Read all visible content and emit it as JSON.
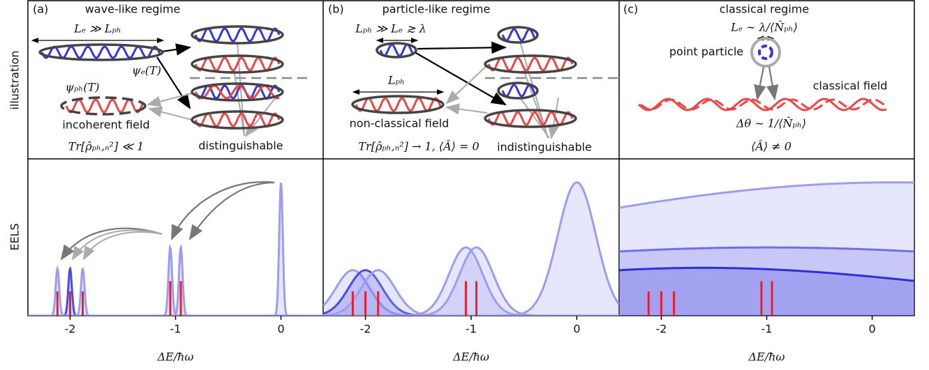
{
  "row_labels": [
    "illustration",
    "EELS"
  ],
  "illustrations": [
    {
      "label": "(a)",
      "title": "wave-like regime",
      "texts": [
        "Lₑ ≫ Lₚₕ",
        "ψₑ(T)",
        "ψₚₕ(T)",
        "incoherent field",
        "Tr[ρ̂ₚₕ,ₙ²] ≪ 1",
        "distinguishable"
      ]
    },
    {
      "label": "(b)",
      "title": "particle-like regime",
      "texts": [
        "Lₚₕ ≫ Lₑ ≳ λ",
        "Lₚₕ",
        "non-classical field",
        "Tr[ρ̂ₚₕ,ₙ²] → 1, ⟨Â⟩ = 0",
        "indistinguishable"
      ]
    },
    {
      "label": "(c)",
      "title": "classical regime",
      "texts": [
        "Lₑ ∼ λ/⟨N̂ₚₕ⟩",
        "point particle",
        "classical field",
        "Δθ ∼ 1/⟨N̂ₚₕ⟩",
        "⟨Â⟩ ≠ 0"
      ]
    }
  ],
  "chart_data": [
    {
      "type": "line",
      "xlabel": "ΔE/ħω",
      "xlim": [
        -2.4,
        0.4
      ],
      "xticks": [
        -2,
        -1,
        0
      ],
      "ylim": [
        0,
        1
      ],
      "peaks": [
        {
          "center": -2.12,
          "width": 0.017,
          "height": 0.3,
          "color": "#9c9cf2"
        },
        {
          "center": -2.0,
          "width": 0.017,
          "height": 0.3,
          "color": "#4a4ae4"
        },
        {
          "center": -1.88,
          "width": 0.017,
          "height": 0.3,
          "color": "#9c9cf2"
        },
        {
          "center": -1.05,
          "width": 0.017,
          "height": 0.435,
          "color": "#9c9cf2"
        },
        {
          "center": -0.95,
          "width": 0.017,
          "height": 0.435,
          "color": "#9c9cf2"
        },
        {
          "center": 0,
          "width": 0.017,
          "height": 0.85,
          "color": "#9c9cf2"
        }
      ],
      "sticks": {
        "color": "#e8202a",
        "x": [
          -2.12,
          -2.0,
          -1.88,
          -1.05,
          -0.95
        ],
        "values": [
          0.155,
          0.155,
          0.155,
          0.22,
          0.22
        ]
      }
    },
    {
      "type": "line",
      "xlabel": "ΔE/ħω",
      "xlim": [
        -2.4,
        0.4
      ],
      "xticks": [
        -2,
        -1,
        0
      ],
      "ylim": [
        0,
        1
      ],
      "peaks": [
        {
          "center": -2.12,
          "width": 0.16,
          "height": 0.29,
          "color": "#9c9cf2"
        },
        {
          "center": -2.0,
          "width": 0.16,
          "height": 0.29,
          "color": "#4a4ae4"
        },
        {
          "center": -1.88,
          "width": 0.16,
          "height": 0.29,
          "color": "#9c9cf2"
        },
        {
          "center": -1.05,
          "width": 0.16,
          "height": 0.435,
          "color": "#9c9cf2"
        },
        {
          "center": -0.95,
          "width": 0.16,
          "height": 0.435,
          "color": "#9c9cf2"
        },
        {
          "center": 0,
          "width": 0.18,
          "height": 0.85,
          "color": "#9c9cf2"
        }
      ],
      "sticks": {
        "color": "#e8202a",
        "x": [
          -2.12,
          -2.0,
          -1.88,
          -1.05,
          -0.95
        ],
        "values": [
          0.155,
          0.155,
          0.155,
          0.22,
          0.22
        ]
      }
    },
    {
      "type": "line",
      "xlabel": "ΔE/ħω",
      "xlim": [
        -2.4,
        0.4
      ],
      "xticks": [
        -2,
        -1,
        0
      ],
      "ylim": [
        0,
        1
      ],
      "peaks": [
        {
          "center": 0.2,
          "width": 4,
          "height": 0.85,
          "color": "#9c9cf2"
        },
        {
          "center": -1,
          "width": 4,
          "height": 0.435,
          "color": "#6f6fea"
        },
        {
          "center": -1.6,
          "width": 2.5,
          "height": 0.305,
          "color": "#2e2edc"
        }
      ],
      "sticks": {
        "color": "#e8202a",
        "x": [
          -2.12,
          -2.0,
          -1.88,
          -1.05,
          -0.95
        ],
        "values": [
          0.155,
          0.155,
          0.155,
          0.22,
          0.22
        ]
      }
    }
  ]
}
